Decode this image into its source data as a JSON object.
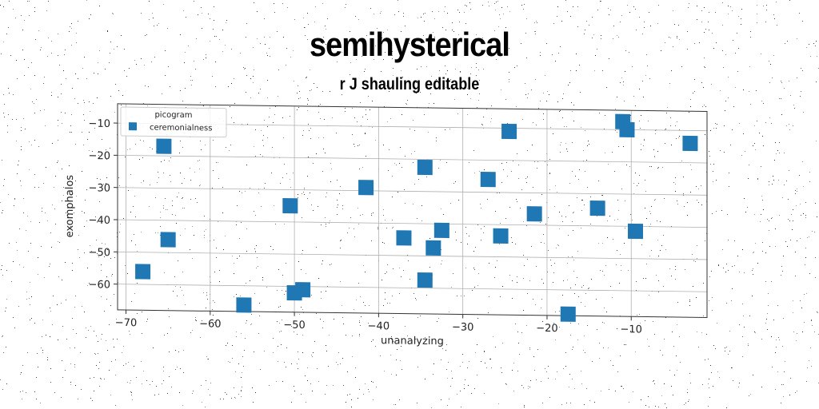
{
  "title": "semihysterical",
  "subtitle": "r J shauling editable",
  "chart_data": {
    "type": "scatter",
    "xlabel": "unanalyzing",
    "ylabel": "exomphalos",
    "xlim": [
      -71,
      -1
    ],
    "ylim": [
      -68,
      -4
    ],
    "xticks": [
      -70,
      -60,
      -50,
      -40,
      -30,
      -20,
      -10
    ],
    "yticks": [
      -10,
      -20,
      -30,
      -40,
      -50,
      -60
    ],
    "grid": true,
    "legend": {
      "title": "picogram",
      "position": "top-left"
    },
    "marker": "square",
    "color": "#1f77b4",
    "series": [
      {
        "name": "ceremonialness",
        "points": [
          [
            -68,
            -56
          ],
          [
            -65.5,
            -17
          ],
          [
            -65,
            -46
          ],
          [
            -56,
            -66
          ],
          [
            -50.5,
            -35
          ],
          [
            -50,
            -62
          ],
          [
            -49,
            -61
          ],
          [
            -41.5,
            -29
          ],
          [
            -37,
            -44.5
          ],
          [
            -34.5,
            -22.5
          ],
          [
            -34.5,
            -57.5
          ],
          [
            -33.5,
            -47.5
          ],
          [
            -32.5,
            -42
          ],
          [
            -27,
            -26
          ],
          [
            -25.5,
            -43.5
          ],
          [
            -24.5,
            -11
          ],
          [
            -21.5,
            -36.5
          ],
          [
            -17.5,
            -67.5
          ],
          [
            -14,
            -34.5
          ],
          [
            -11,
            -7.5
          ],
          [
            -10.5,
            -10
          ],
          [
            -9.5,
            -41.5
          ],
          [
            -3,
            -14
          ]
        ]
      }
    ]
  }
}
